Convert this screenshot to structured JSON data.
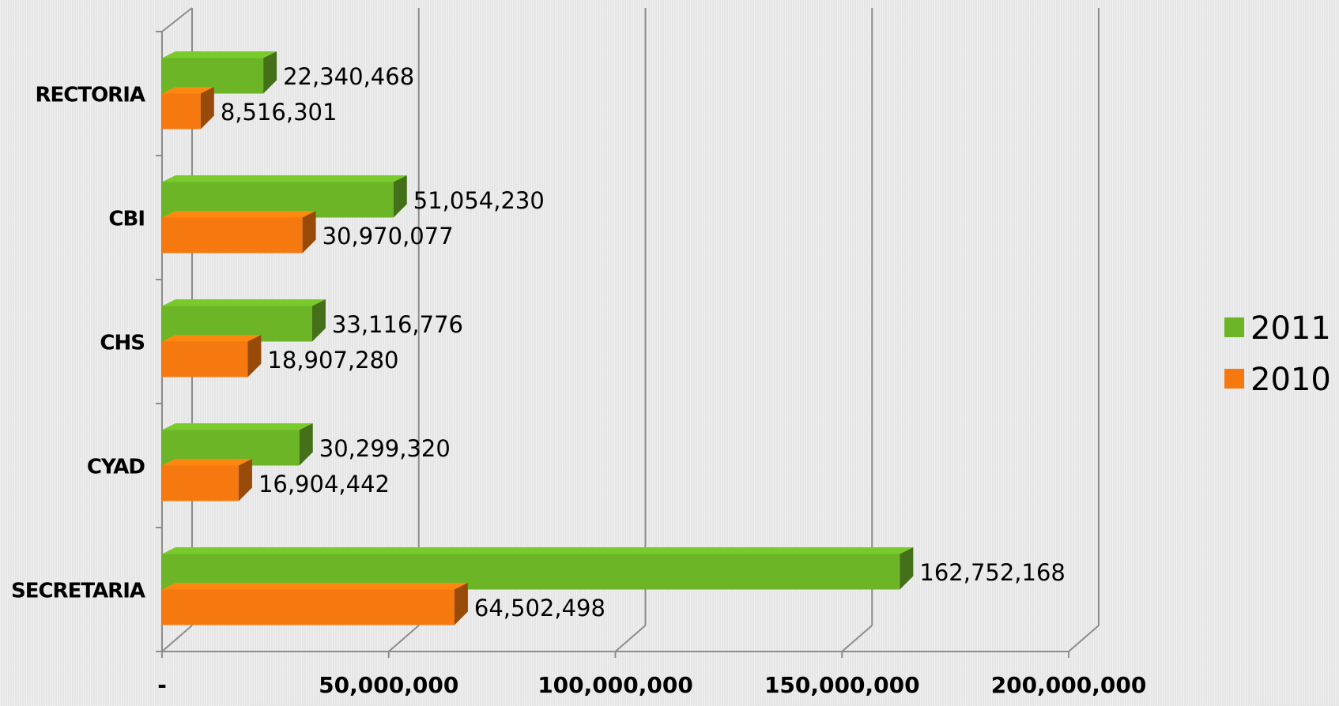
{
  "chart_data": {
    "type": "bar",
    "orientation": "horizontal",
    "style": "3d",
    "categories": [
      "RECTORIA",
      "CBI",
      "CHS",
      "CYAD",
      "SECRETARIA"
    ],
    "series": [
      {
        "name": "2011",
        "color": "#6cb526",
        "values": [
          22340468,
          51054230,
          33116776,
          30299320,
          162752168
        ],
        "labels": [
          "22,340,468",
          "51,054,230",
          "33,116,776",
          "30,299,320",
          "162,752,168"
        ]
      },
      {
        "name": "2010",
        "color": "#f5790f",
        "values": [
          8516301,
          30970077,
          18907280,
          16904442,
          64502498
        ],
        "labels": [
          "8,516,301",
          "30,970,077",
          "18,907,280",
          "16,904,442",
          "64,502,498"
        ]
      }
    ],
    "xlim": [
      0,
      200000000
    ],
    "x_ticks": [
      0,
      50000000,
      100000000,
      150000000,
      200000000
    ],
    "x_tick_labels": [
      "-",
      "50,000,000",
      "100,000,000",
      "150,000,000",
      "200,000,000"
    ],
    "title": "",
    "xlabel": "",
    "ylabel": "",
    "grid": true,
    "legend_position": "right"
  }
}
